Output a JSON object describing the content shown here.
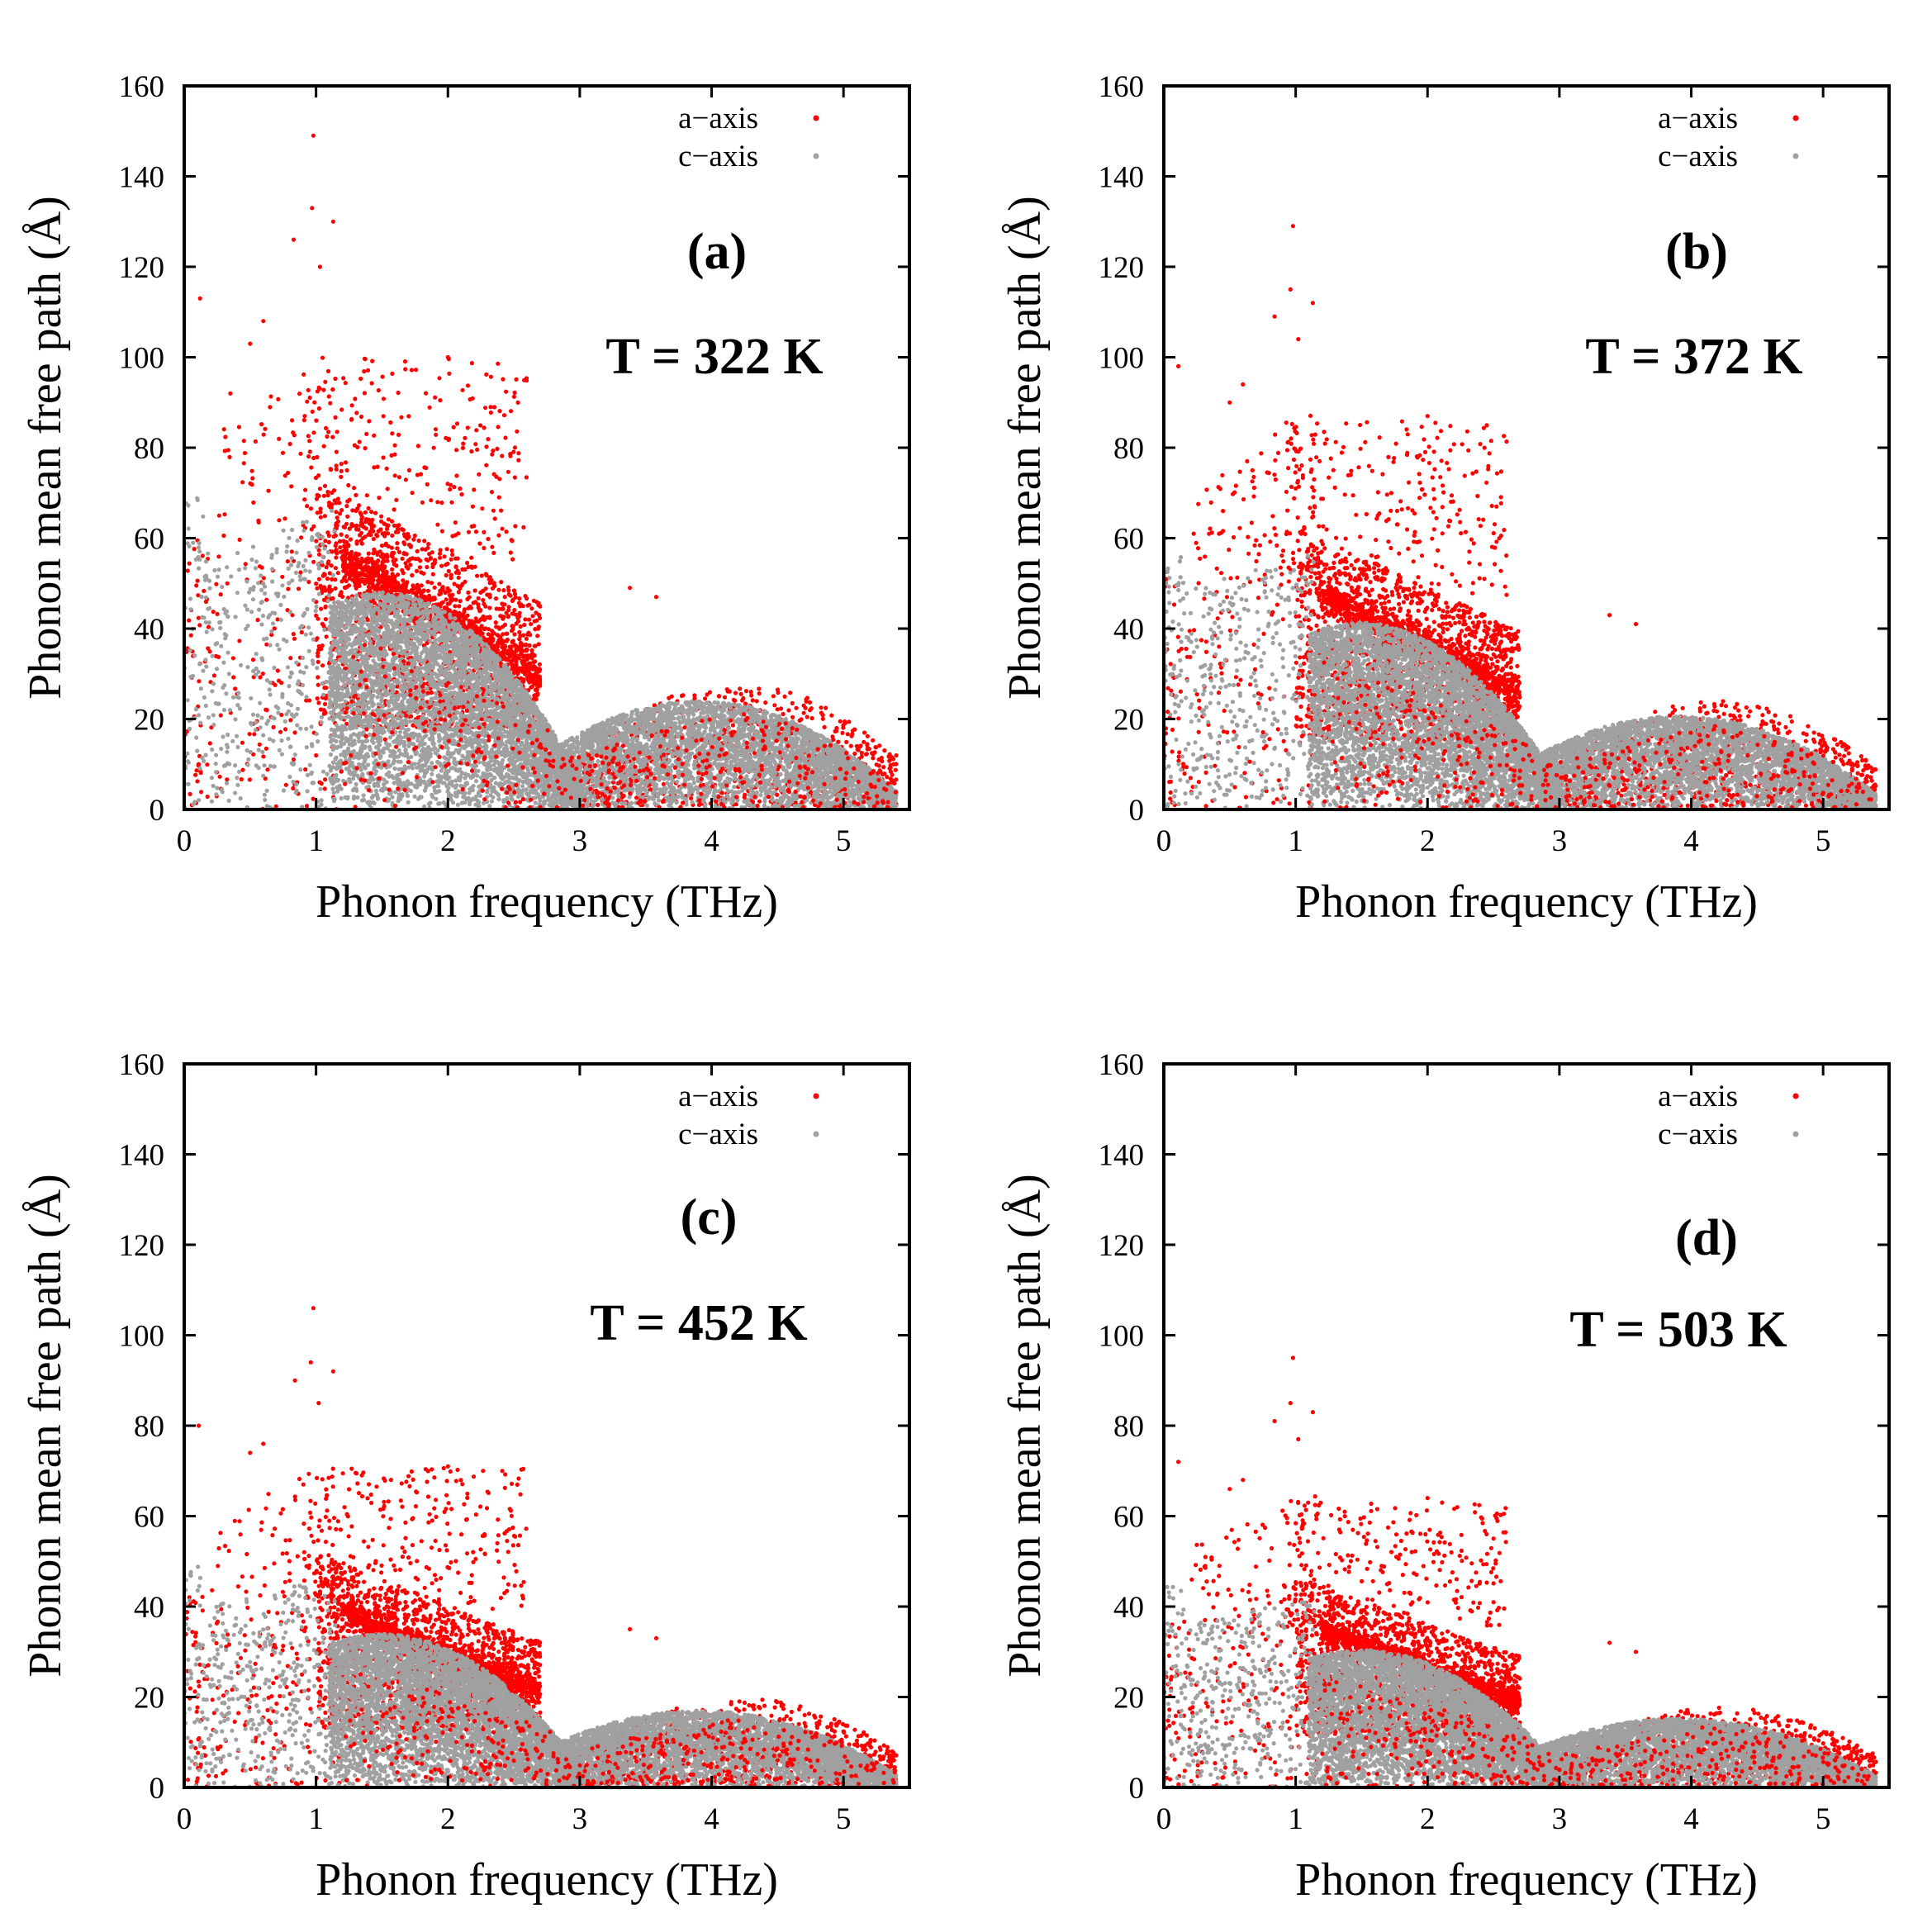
{
  "chart_data": [
    {
      "type": "scatter",
      "panel_label": "(a)",
      "temperature_label": "T = 322 K",
      "xlabel": "Phonon frequency (THz)",
      "ylabel": "Phonon mean free path (Å)",
      "xlim": [
        0,
        5.5
      ],
      "ylim": [
        0,
        160
      ],
      "xticks": [
        0,
        1,
        2,
        3,
        4,
        5
      ],
      "yticks": [
        0,
        20,
        40,
        60,
        80,
        100,
        120,
        140,
        160
      ],
      "grid": false,
      "legend_position": "top-right",
      "series": [
        {
          "name": "a−axis",
          "color": "#ff0000"
        },
        {
          "name": "c−axis",
          "color": "#a0a0a0"
        }
      ],
      "max_mfp": 150,
      "outliers": [
        [
          0.98,
          149
        ],
        [
          0.97,
          133
        ],
        [
          1.13,
          130
        ],
        [
          0.83,
          126
        ],
        [
          1.03,
          120
        ],
        [
          0.6,
          108
        ],
        [
          0.12,
          113
        ],
        [
          0.5,
          103
        ],
        [
          0.35,
          92
        ],
        [
          2.0,
          100
        ],
        [
          3.38,
          49
        ],
        [
          3.58,
          47
        ]
      ]
    },
    {
      "type": "scatter",
      "panel_label": "(b)",
      "temperature_label": "T = 372 K",
      "xlabel": "Phonon frequency (THz)",
      "ylabel": "Phonon mean free path (Å)",
      "xlim": [
        0,
        5.5
      ],
      "ylim": [
        0,
        160
      ],
      "xticks": [
        0,
        1,
        2,
        3,
        4,
        5
      ],
      "yticks": [
        0,
        20,
        40,
        60,
        80,
        100,
        120,
        140,
        160
      ],
      "grid": false,
      "legend_position": "top-right",
      "series": [
        {
          "name": "a−axis",
          "color": "#ff0000"
        },
        {
          "name": "c−axis",
          "color": "#a0a0a0"
        }
      ],
      "max_mfp": 129,
      "outliers": [
        [
          0.98,
          129
        ],
        [
          0.96,
          115
        ],
        [
          1.13,
          112
        ],
        [
          0.84,
          109
        ],
        [
          1.02,
          104
        ],
        [
          0.6,
          94
        ],
        [
          0.11,
          98
        ],
        [
          0.5,
          90
        ],
        [
          2.0,
          87
        ],
        [
          3.38,
          43
        ],
        [
          3.58,
          41
        ]
      ]
    },
    {
      "type": "scatter",
      "panel_label": "(c)",
      "temperature_label": "T = 452 K",
      "xlabel": "Phonon frequency (THz)",
      "ylabel": "Phonon mean free path (Å)",
      "xlim": [
        0,
        5.5
      ],
      "ylim": [
        0,
        160
      ],
      "xticks": [
        0,
        1,
        2,
        3,
        4,
        5
      ],
      "yticks": [
        0,
        20,
        40,
        60,
        80,
        100,
        120,
        140,
        160
      ],
      "grid": false,
      "legend_position": "top-right",
      "series": [
        {
          "name": "a−axis",
          "color": "#ff0000"
        },
        {
          "name": "c−axis",
          "color": "#a0a0a0"
        }
      ],
      "max_mfp": 106,
      "outliers": [
        [
          0.98,
          106
        ],
        [
          0.96,
          94
        ],
        [
          1.13,
          92
        ],
        [
          0.84,
          90
        ],
        [
          1.02,
          85
        ],
        [
          0.6,
          76
        ],
        [
          0.11,
          80
        ],
        [
          0.5,
          74
        ],
        [
          2.0,
          71
        ],
        [
          3.38,
          35
        ],
        [
          3.58,
          33
        ]
      ]
    },
    {
      "type": "scatter",
      "panel_label": "(d)",
      "temperature_label": "T = 503 K",
      "xlabel": "Phonon frequency (THz)",
      "ylabel": "Phonon mean free path (Å)",
      "xlim": [
        0,
        5.5
      ],
      "ylim": [
        0,
        160
      ],
      "xticks": [
        0,
        1,
        2,
        3,
        4,
        5
      ],
      "yticks": [
        0,
        20,
        40,
        60,
        80,
        100,
        120,
        140,
        160
      ],
      "grid": false,
      "legend_position": "top-right",
      "series": [
        {
          "name": "a−axis",
          "color": "#ff0000"
        },
        {
          "name": "c−axis",
          "color": "#a0a0a0"
        }
      ],
      "max_mfp": 95,
      "outliers": [
        [
          0.98,
          95
        ],
        [
          0.96,
          85
        ],
        [
          1.13,
          83
        ],
        [
          0.84,
          81
        ],
        [
          1.02,
          77
        ],
        [
          0.6,
          68
        ],
        [
          0.11,
          72
        ],
        [
          0.5,
          66
        ],
        [
          2.0,
          64
        ],
        [
          3.38,
          32
        ],
        [
          3.58,
          30
        ]
      ]
    }
  ]
}
